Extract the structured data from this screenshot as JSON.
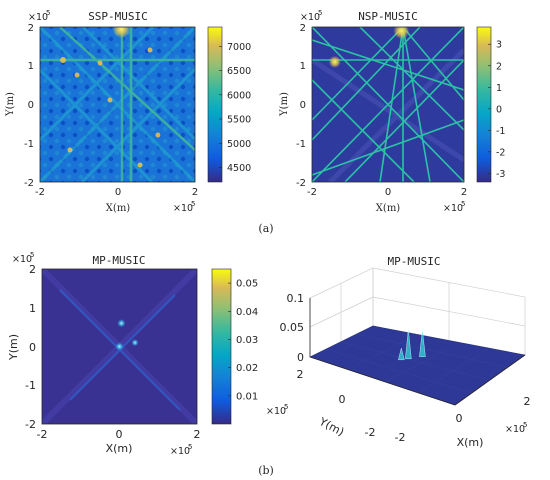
{
  "panel_labels": [
    "(a)",
    "(b)"
  ],
  "exponent": {
    "base": "×10",
    "power": "5"
  },
  "chart_data": [
    {
      "type": "heatmap",
      "title": "SSP-MUSIC",
      "xlabel": "X(m)",
      "ylabel": "Y(m)",
      "xticks": [
        "-2",
        "0",
        "2"
      ],
      "yticks": [
        "2",
        "1",
        "0",
        "-1",
        "-2"
      ],
      "xlim": [
        -200000,
        200000
      ],
      "ylim": [
        -200000,
        200000
      ],
      "colorbar": {
        "ticks": [
          "7000",
          "6500",
          "6000",
          "5500",
          "5000",
          "4500"
        ],
        "range": [
          4200,
          7400
        ]
      },
      "colormap": "parula",
      "peaks": [
        {
          "x": 10000,
          "y": 195000
        }
      ]
    },
    {
      "type": "heatmap",
      "title": "NSP-MUSIC",
      "xlabel": "X(m)",
      "ylabel": "Y(m)",
      "xticks": [
        "-2",
        "0",
        "2"
      ],
      "yticks": [
        "2",
        "1",
        "0",
        "-1",
        "-2"
      ],
      "xlim": [
        -200000,
        200000
      ],
      "ylim": [
        -200000,
        200000
      ],
      "colorbar": {
        "ticks": [
          "3",
          "2",
          "1",
          "0",
          "-1",
          "-2",
          "-3"
        ],
        "range": [
          -3.4,
          3.8
        ]
      },
      "colormap": "parula",
      "peaks": [
        {
          "x": 35000,
          "y": 190000
        },
        {
          "x": -140000,
          "y": 110000
        }
      ]
    },
    {
      "type": "heatmap",
      "title": "MP-MUSIC",
      "xlabel": "X(m)",
      "ylabel": "Y(m)",
      "xticks": [
        "-2",
        "0",
        "2"
      ],
      "yticks": [
        "2",
        "1",
        "0",
        "-1",
        "-2"
      ],
      "xlim": [
        -200000,
        200000
      ],
      "ylim": [
        -200000,
        200000
      ],
      "colorbar": {
        "ticks": [
          "0.05",
          "0.04",
          "0.03",
          "0.02",
          "0.01"
        ],
        "range": [
          0,
          0.055
        ]
      },
      "colormap": "parula",
      "peaks": [
        {
          "x": 5000,
          "y": 60000
        },
        {
          "x": 0,
          "y": 0
        },
        {
          "x": 40000,
          "y": 10000
        }
      ]
    },
    {
      "type": "surface",
      "title": "MP-MUSIC",
      "xlabel": "X(m)",
      "ylabel": "Y(m)",
      "xticks": [
        "-2",
        "0",
        "2"
      ],
      "yticks": [
        "2",
        "0",
        "-2"
      ],
      "zticks": [
        "0.1",
        "0.05",
        "0"
      ],
      "zlim": [
        0,
        0.1
      ],
      "peaks": [
        {
          "x": 0,
          "y": 20000,
          "z": 0.05
        },
        {
          "x": 40000,
          "y": 0,
          "z": 0.045
        },
        {
          "x": -20000,
          "y": 30000,
          "z": 0.02
        }
      ]
    }
  ]
}
